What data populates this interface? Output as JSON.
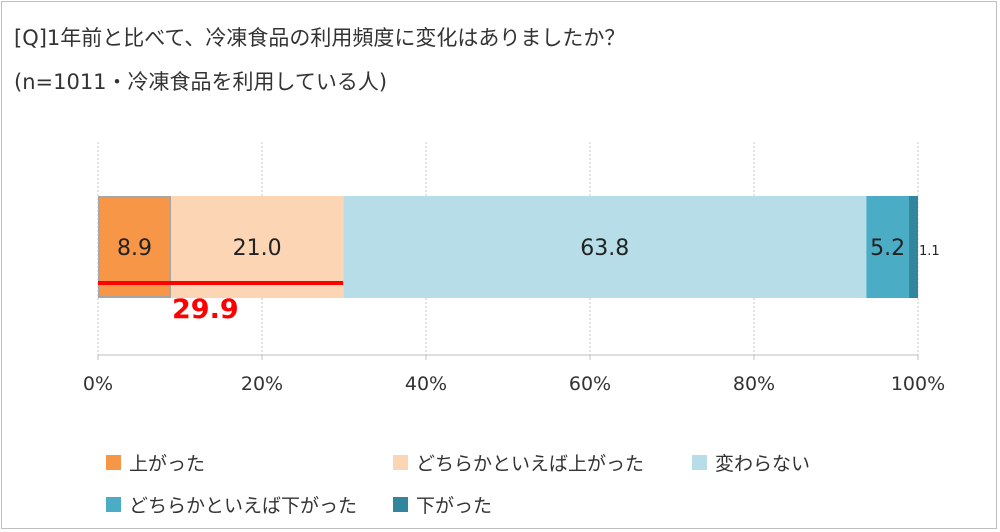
{
  "title_line1": "[Q]1年前と比べて、冷凍食品の利用頻度に変化はありましたか？",
  "title_line2": "(n=1011・冷凍食品を利用している人)",
  "chart_data": {
    "type": "bar",
    "orientation": "horizontal",
    "stacked": true,
    "xlim": [
      0,
      100
    ],
    "x_ticks": [
      "0%",
      "20%",
      "40%",
      "60%",
      "80%",
      "100%"
    ],
    "grid": true,
    "legend_position": "bottom",
    "series": [
      {
        "name": "上がった",
        "value": 8.9,
        "label": "8.9",
        "color": "#F79646"
      },
      {
        "name": "どちらかといえば上がった",
        "value": 21.0,
        "label": "21.0",
        "color": "#FCD5B5"
      },
      {
        "name": "変わらない",
        "value": 63.8,
        "label": "63.8",
        "color": "#B7DEE8"
      },
      {
        "name": "どちらかといえば下がった",
        "value": 5.2,
        "label": "5.2",
        "color": "#4BACC6"
      },
      {
        "name": "下がった",
        "value": 1.1,
        "label": "1.1",
        "color": "#31859C"
      }
    ],
    "annotation": {
      "label": "29.9",
      "color": "#FF0000",
      "spans_series": [
        0,
        1
      ]
    }
  }
}
